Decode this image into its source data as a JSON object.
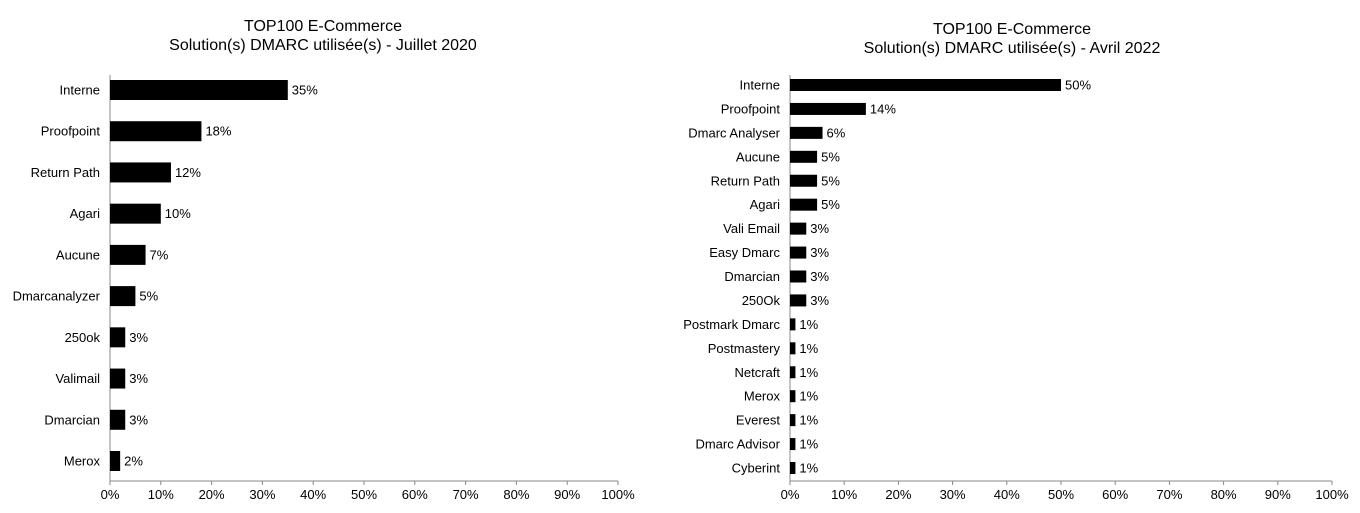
{
  "chart_data": [
    {
      "type": "bar",
      "orientation": "horizontal",
      "title": "TOP100 E-Commerce",
      "subtitle": "Solution(s) DMARC utilisée(s) - Juillet 2020",
      "categories": [
        "Interne",
        "Proofpoint",
        "Return Path",
        "Agari",
        "Aucune",
        "Dmarcanalyzer",
        "250ok",
        "Valimail",
        "Dmarcian",
        "Merox"
      ],
      "values": [
        35,
        18,
        12,
        10,
        7,
        5,
        3,
        3,
        3,
        2
      ],
      "labels": [
        "35%",
        "18%",
        "12%",
        "10%",
        "7%",
        "5%",
        "3%",
        "3%",
        "3%",
        "2%"
      ],
      "xlim": [
        0,
        100
      ],
      "xticks": [
        "0%",
        "10%",
        "20%",
        "30%",
        "40%",
        "50%",
        "60%",
        "70%",
        "80%",
        "90%",
        "100%"
      ],
      "grid": false,
      "bar_color": "#000000"
    },
    {
      "type": "bar",
      "orientation": "horizontal",
      "title": "TOP100 E-Commerce",
      "subtitle": "Solution(s) DMARC utilisée(s) - Avril 2022",
      "categories": [
        "Interne",
        "Proofpoint",
        "Dmarc Analyser",
        "Aucune",
        "Return Path",
        "Agari",
        "Vali Email",
        "Easy Dmarc",
        "Dmarcian",
        "250Ok",
        "Postmark Dmarc",
        "Postmastery",
        "Netcraft",
        "Merox",
        "Everest",
        "Dmarc Advisor",
        "Cyberint"
      ],
      "values": [
        50,
        14,
        6,
        5,
        5,
        5,
        3,
        3,
        3,
        3,
        1,
        1,
        1,
        1,
        1,
        1,
        1
      ],
      "labels": [
        "50%",
        "14%",
        "6%",
        "5%",
        "5%",
        "5%",
        "3%",
        "3%",
        "3%",
        "3%",
        "1%",
        "1%",
        "1%",
        "1%",
        "1%",
        "1%",
        "1%"
      ],
      "xlim": [
        0,
        100
      ],
      "xticks": [
        "0%",
        "10%",
        "20%",
        "30%",
        "40%",
        "50%",
        "60%",
        "70%",
        "80%",
        "90%",
        "100%"
      ],
      "grid": false,
      "bar_color": "#000000"
    }
  ]
}
